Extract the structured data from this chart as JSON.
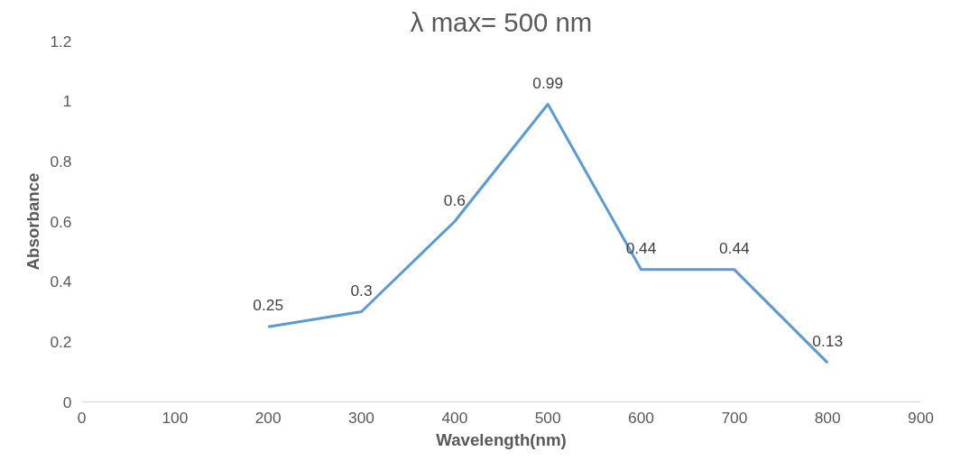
{
  "chart_data": {
    "type": "line",
    "title": "λ max= 500 nm",
    "xlabel": "Wavelength(nm)",
    "ylabel": "Absorbance",
    "x": [
      200,
      300,
      400,
      500,
      600,
      700,
      800
    ],
    "series": [
      {
        "color": "#5b9bd5",
        "values": [
          0.25,
          0.3,
          0.6,
          0.99,
          0.44,
          0.44,
          0.13
        ]
      }
    ],
    "xlim": [
      0,
      900
    ],
    "xticks": [
      0,
      100,
      200,
      300,
      400,
      500,
      600,
      700,
      800,
      900
    ],
    "ylim": [
      0,
      1.2
    ],
    "yticks": [
      0,
      0.2,
      0.4,
      0.6,
      0.8,
      1,
      1.2
    ],
    "data_labels": true,
    "grid": false,
    "marker": "none",
    "line_style": "solid"
  }
}
